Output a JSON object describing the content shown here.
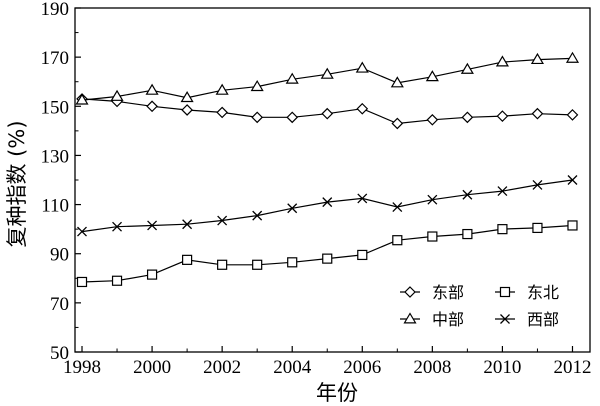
{
  "chart_data": {
    "type": "line",
    "title": "",
    "xlabel": "年份",
    "ylabel": "复种指数 (%)",
    "x": [
      1998,
      1999,
      2000,
      2001,
      2002,
      2003,
      2004,
      2005,
      2006,
      2007,
      2008,
      2009,
      2010,
      2011,
      2012
    ],
    "xlim": [
      1997.8,
      2012.5
    ],
    "ylim": [
      50,
      190
    ],
    "x_ticks": [
      "1998",
      "2000",
      "2002",
      "2004",
      "2006",
      "2008",
      "2010",
      "2012"
    ],
    "y_ticks": [
      "50",
      "70",
      "90",
      "110",
      "130",
      "150",
      "170",
      "190"
    ],
    "grid": false,
    "legend_position": "bottom-right",
    "series": [
      {
        "name": "东部",
        "marker": "diamond",
        "values": [
          153,
          152,
          150,
          148.5,
          147.5,
          145.5,
          145.5,
          147,
          149,
          143,
          144.5,
          145.5,
          146,
          147,
          146.5
        ]
      },
      {
        "name": "中部",
        "marker": "triangle",
        "values": [
          152.5,
          154,
          156.5,
          153.5,
          156.5,
          158,
          161,
          163,
          165.5,
          159.5,
          162,
          165,
          168,
          169,
          169.5
        ]
      },
      {
        "name": "东北",
        "marker": "square",
        "values": [
          78.5,
          79,
          81.5,
          87.5,
          85.5,
          85.5,
          86.5,
          88,
          89.5,
          95.5,
          97,
          98,
          100,
          100.5,
          101.5
        ]
      },
      {
        "name": "西部",
        "marker": "x",
        "values": [
          99,
          101,
          101.5,
          102,
          103.5,
          105.5,
          108.5,
          111,
          112.5,
          109,
          112,
          114,
          115.5,
          118,
          120
        ]
      }
    ]
  }
}
